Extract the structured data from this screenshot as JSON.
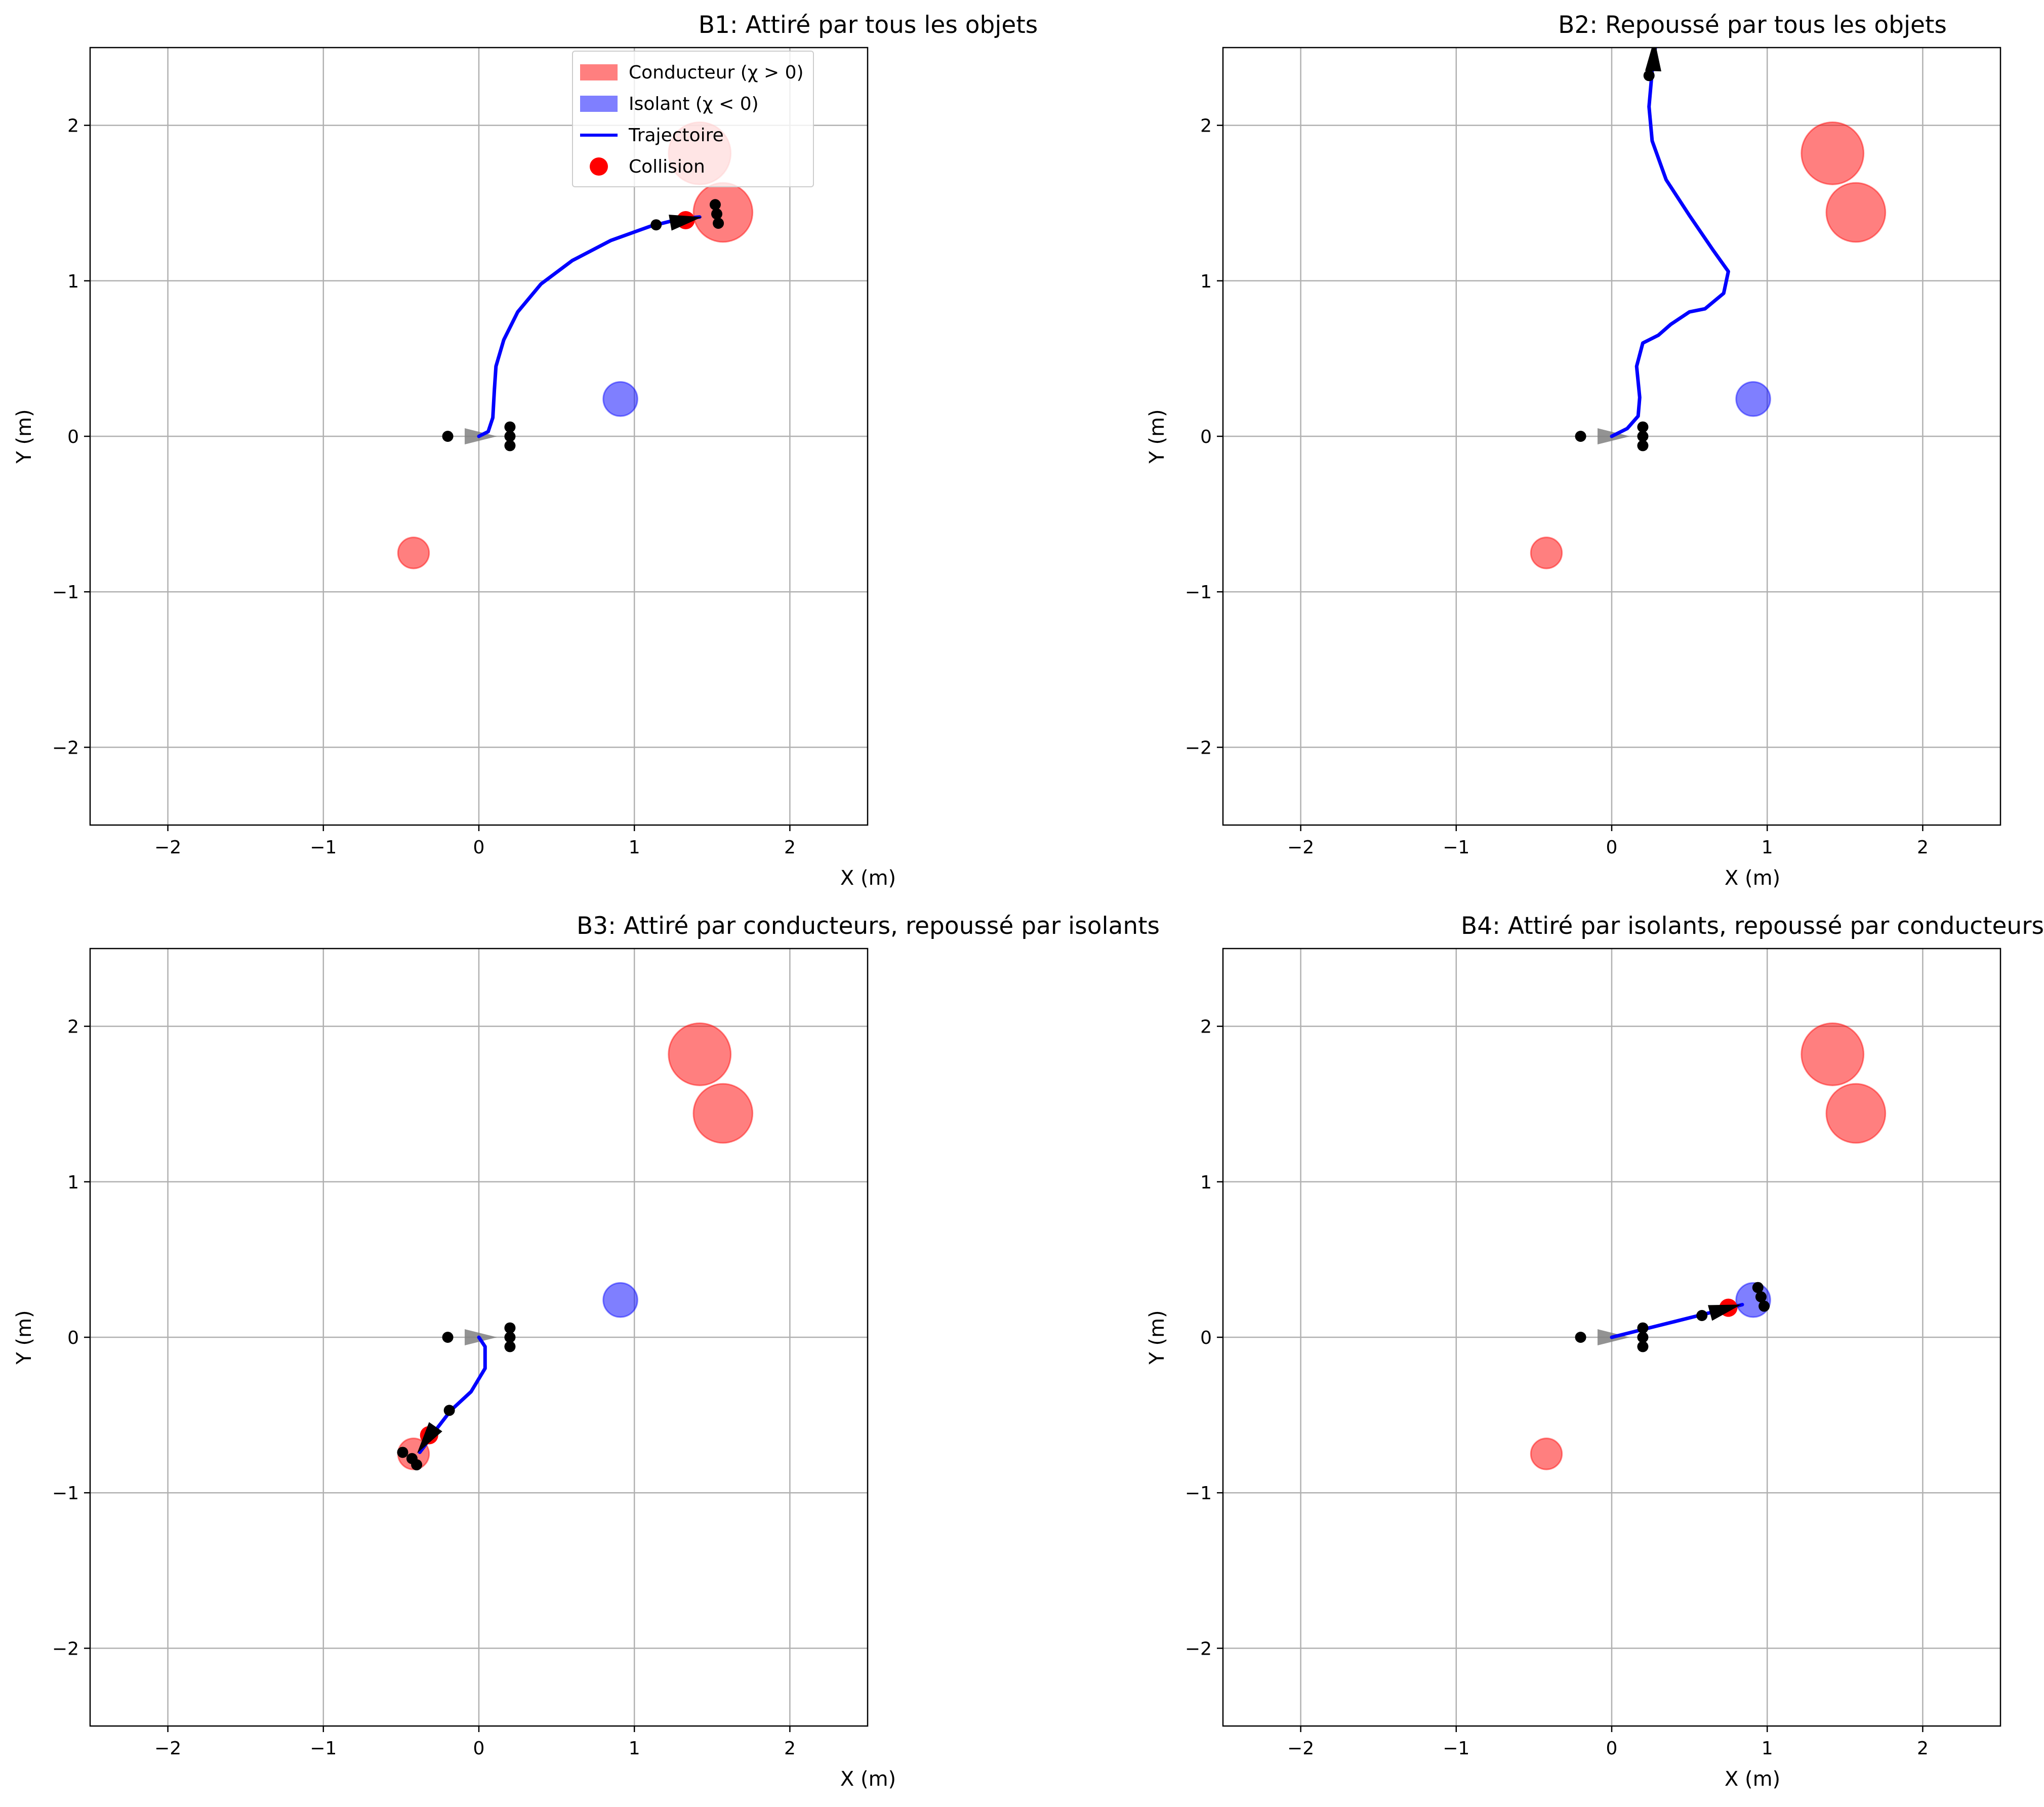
{
  "colors": {
    "conducteur": "#ff0000",
    "isolant": "#0000ff",
    "trajectoire": "#0000ff",
    "collision": "#ff0000",
    "grid": "#b0b0b0"
  },
  "legend": {
    "conducteur": "Conducteur (χ > 0)",
    "isolant": "Isolant (χ < 0)",
    "trajectoire": "Trajectoire",
    "collision": "Collision"
  },
  "chart_data": [
    {
      "type": "scatter",
      "title": "B1: Attiré par tous les objets",
      "xlabel": "X (m)",
      "ylabel": "Y (m)",
      "xlim": [
        -2.5,
        2.5
      ],
      "ylim": [
        -2.5,
        2.5
      ],
      "xticks": [
        -2,
        -1,
        0,
        1,
        2
      ],
      "yticks": [
        -2,
        -1,
        0,
        1,
        2
      ],
      "xticklabels": [
        "−2",
        "−1",
        "0",
        "1",
        "2"
      ],
      "yticklabels": [
        "−2",
        "−1",
        "0",
        "1",
        "2"
      ],
      "grid": true,
      "legend_position": "top-right",
      "objects": [
        {
          "kind": "conducteur",
          "x": 1.42,
          "y": 1.82,
          "r": 0.2
        },
        {
          "kind": "conducteur",
          "x": 1.57,
          "y": 1.44,
          "r": 0.19
        },
        {
          "kind": "conducteur",
          "x": -0.42,
          "y": -0.75,
          "r": 0.1
        },
        {
          "kind": "isolant",
          "x": 0.91,
          "y": 0.24,
          "r": 0.11
        }
      ],
      "trajectory": [
        [
          0,
          0
        ],
        [
          0.06,
          0.03
        ],
        [
          0.09,
          0.12
        ],
        [
          0.1,
          0.3
        ],
        [
          0.11,
          0.45
        ],
        [
          0.16,
          0.62
        ],
        [
          0.25,
          0.8
        ],
        [
          0.4,
          0.98
        ],
        [
          0.6,
          1.13
        ],
        [
          0.85,
          1.26
        ],
        [
          1.1,
          1.35
        ],
        [
          1.3,
          1.4
        ],
        [
          1.42,
          1.41
        ]
      ],
      "robot_start": {
        "x": 0,
        "y": 0,
        "angle": 0,
        "color": "#808080"
      },
      "robot_end": {
        "x": 1.32,
        "y": 1.39,
        "angle": 10,
        "color": "#000000"
      },
      "collisions": [
        {
          "x": 1.33,
          "y": 1.39
        }
      ],
      "sensors": [
        [
          -0.2,
          0
        ],
        [
          0.2,
          0.06
        ],
        [
          0.2,
          0
        ],
        [
          0.2,
          -0.06
        ],
        [
          1.14,
          1.36
        ],
        [
          1.52,
          1.49
        ],
        [
          1.53,
          1.43
        ],
        [
          1.54,
          1.37
        ]
      ]
    },
    {
      "type": "scatter",
      "title": "B2: Repoussé par tous les objets",
      "xlabel": "X (m)",
      "ylabel": "Y (m)",
      "xlim": [
        -2.5,
        2.5
      ],
      "ylim": [
        -2.5,
        2.5
      ],
      "xticks": [
        -2,
        -1,
        0,
        1,
        2
      ],
      "yticks": [
        -2,
        -1,
        0,
        1,
        2
      ],
      "xticklabels": [
        "−2",
        "−1",
        "0",
        "1",
        "2"
      ],
      "yticklabels": [
        "−2",
        "−1",
        "0",
        "1",
        "2"
      ],
      "grid": true,
      "objects": [
        {
          "kind": "conducteur",
          "x": 1.42,
          "y": 1.82,
          "r": 0.2
        },
        {
          "kind": "conducteur",
          "x": 1.57,
          "y": 1.44,
          "r": 0.19
        },
        {
          "kind": "conducteur",
          "x": -0.42,
          "y": -0.75,
          "r": 0.1
        },
        {
          "kind": "isolant",
          "x": 0.91,
          "y": 0.24,
          "r": 0.11
        }
      ],
      "trajectory": [
        [
          0,
          0
        ],
        [
          0.1,
          0.05
        ],
        [
          0.17,
          0.13
        ],
        [
          0.18,
          0.25
        ],
        [
          0.16,
          0.45
        ],
        [
          0.2,
          0.6
        ],
        [
          0.3,
          0.65
        ],
        [
          0.38,
          0.72
        ],
        [
          0.5,
          0.8
        ],
        [
          0.6,
          0.82
        ],
        [
          0.72,
          0.92
        ],
        [
          0.75,
          1.06
        ],
        [
          0.65,
          1.2
        ],
        [
          0.5,
          1.42
        ],
        [
          0.35,
          1.65
        ],
        [
          0.26,
          1.9
        ],
        [
          0.24,
          2.12
        ],
        [
          0.26,
          2.35
        ],
        [
          0.28,
          2.5
        ]
      ],
      "robot_start": {
        "x": 0,
        "y": 0,
        "angle": 0,
        "color": "#808080"
      },
      "robot_end": {
        "x": 0.27,
        "y": 2.44,
        "angle": 88,
        "color": "#000000"
      },
      "collisions": [],
      "sensors": [
        [
          -0.2,
          0
        ],
        [
          0.2,
          0.06
        ],
        [
          0.2,
          0
        ],
        [
          0.2,
          -0.06
        ],
        [
          0.24,
          2.32
        ]
      ]
    },
    {
      "type": "scatter",
      "title": "B3: Attiré par conducteurs, repoussé par isolants",
      "xlabel": "X (m)",
      "ylabel": "Y (m)",
      "xlim": [
        -2.5,
        2.5
      ],
      "ylim": [
        -2.5,
        2.5
      ],
      "xticks": [
        -2,
        -1,
        0,
        1,
        2
      ],
      "yticks": [
        -2,
        -1,
        0,
        1,
        2
      ],
      "xticklabels": [
        "−2",
        "−1",
        "0",
        "1",
        "2"
      ],
      "yticklabels": [
        "−2",
        "−1",
        "0",
        "1",
        "2"
      ],
      "grid": true,
      "objects": [
        {
          "kind": "conducteur",
          "x": 1.42,
          "y": 1.82,
          "r": 0.2
        },
        {
          "kind": "conducteur",
          "x": 1.57,
          "y": 1.44,
          "r": 0.19
        },
        {
          "kind": "conducteur",
          "x": -0.42,
          "y": -0.75,
          "r": 0.1
        },
        {
          "kind": "isolant",
          "x": 0.91,
          "y": 0.24,
          "r": 0.11
        }
      ],
      "trajectory": [
        [
          0,
          0
        ],
        [
          0.04,
          -0.06
        ],
        [
          0.04,
          -0.2
        ],
        [
          -0.05,
          -0.35
        ],
        [
          -0.18,
          -0.47
        ],
        [
          -0.28,
          -0.6
        ],
        [
          -0.35,
          -0.7
        ],
        [
          -0.38,
          -0.74
        ]
      ],
      "robot_start": {
        "x": 0,
        "y": 0,
        "angle": 0,
        "color": "#808080"
      },
      "robot_end": {
        "x": -0.33,
        "y": -0.65,
        "angle": -125,
        "color": "#000000"
      },
      "collisions": [
        {
          "x": -0.32,
          "y": -0.63
        }
      ],
      "sensors": [
        [
          -0.2,
          0
        ],
        [
          0.2,
          0.06
        ],
        [
          0.2,
          0
        ],
        [
          0.2,
          -0.06
        ],
        [
          -0.19,
          -0.47
        ],
        [
          -0.49,
          -0.74
        ],
        [
          -0.43,
          -0.78
        ],
        [
          -0.4,
          -0.82
        ]
      ]
    },
    {
      "type": "scatter",
      "title": "B4: Attiré par isolants, repoussé par conducteurs",
      "xlabel": "X (m)",
      "ylabel": "Y (m)",
      "xlim": [
        -2.5,
        2.5
      ],
      "ylim": [
        -2.5,
        2.5
      ],
      "xticks": [
        -2,
        -1,
        0,
        1,
        2
      ],
      "yticks": [
        -2,
        -1,
        0,
        1,
        2
      ],
      "xticklabels": [
        "−2",
        "−1",
        "0",
        "1",
        "2"
      ],
      "yticklabels": [
        "−2",
        "−1",
        "0",
        "1",
        "2"
      ],
      "grid": true,
      "objects": [
        {
          "kind": "conducteur",
          "x": 1.42,
          "y": 1.82,
          "r": 0.2
        },
        {
          "kind": "conducteur",
          "x": 1.57,
          "y": 1.44,
          "r": 0.19
        },
        {
          "kind": "conducteur",
          "x": -0.42,
          "y": -0.75,
          "r": 0.1
        },
        {
          "kind": "isolant",
          "x": 0.91,
          "y": 0.24,
          "r": 0.11
        }
      ],
      "trajectory": [
        [
          0,
          0
        ],
        [
          0.2,
          0.05
        ],
        [
          0.4,
          0.1
        ],
        [
          0.6,
          0.15
        ],
        [
          0.76,
          0.19
        ],
        [
          0.84,
          0.21
        ]
      ],
      "robot_start": {
        "x": 0,
        "y": 0,
        "angle": 0,
        "color": "#808080"
      },
      "robot_end": {
        "x": 0.72,
        "y": 0.18,
        "angle": 15,
        "color": "#000000"
      },
      "collisions": [
        {
          "x": 0.75,
          "y": 0.19
        }
      ],
      "sensors": [
        [
          -0.2,
          0
        ],
        [
          0.2,
          0.06
        ],
        [
          0.2,
          0
        ],
        [
          0.2,
          -0.06
        ],
        [
          0.58,
          0.14
        ],
        [
          0.94,
          0.32
        ],
        [
          0.96,
          0.26
        ],
        [
          0.98,
          0.2
        ]
      ]
    }
  ]
}
